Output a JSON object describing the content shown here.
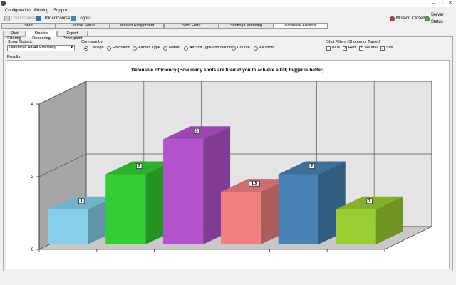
{
  "menubar": {
    "items": [
      "Configuration",
      "Printing",
      "Support"
    ]
  },
  "toolbar": {
    "load_course": "Load Course",
    "unload_course": "UnloadCourse",
    "logout": "Logout",
    "mission_status": "Mission Closed",
    "server_status": "Server Status",
    "mission_color": "#e03030",
    "server_color": "#33cc33"
  },
  "nav_tabs": [
    "Start",
    "Course Setup",
    "Mission Assignment",
    "Shot Entry",
    "Shotlog Debriefing",
    "Database Analysis"
  ],
  "active_nav_tab": "Database Analysis",
  "sub_tabs": [
    "Shot Filtering",
    "Statistic Rendering",
    "Export Powerpoint"
  ],
  "active_sub_tab": "Statistic Rendering",
  "controls": {
    "show_statistic_label": "Show Statistic",
    "show_statistic_value": "Defensive Air/Air Efficiency",
    "compare_by_label": "Compare by",
    "compare_options": [
      "Callsign",
      "Formation",
      "Aircraft Type",
      "Nation",
      "Aircraft Type and Nation",
      "Course",
      "All shots"
    ],
    "compare_selected": "Callsign",
    "shot_filters_label": "Shot Filters (Shooter or Target)",
    "filters": [
      {
        "label": "Blue",
        "checked": false
      },
      {
        "label": "Red",
        "checked": true
      },
      {
        "label": "Neutral",
        "checked": true
      },
      {
        "label": "Sim",
        "checked": true
      }
    ]
  },
  "results_label": "Results",
  "chart_data": {
    "type": "bar",
    "title": "Defensive Efficiency (How many shots are fired at you to achieve a kill; bigger is better)",
    "categories": [
      "",
      "",
      "",
      "",
      "",
      ""
    ],
    "values": [
      1,
      2,
      3,
      1.5,
      2,
      1
    ],
    "data_labels": [
      "1",
      "2",
      "3",
      "1.5",
      "2",
      "1"
    ],
    "colors": [
      "#87ceeb",
      "#32cd32",
      "#b452cd",
      "#f08080",
      "#4682b4",
      "#9acd32"
    ],
    "ylim": [
      0,
      4
    ],
    "yticks": [
      0,
      2,
      4
    ],
    "grid": true,
    "three_d": true
  }
}
